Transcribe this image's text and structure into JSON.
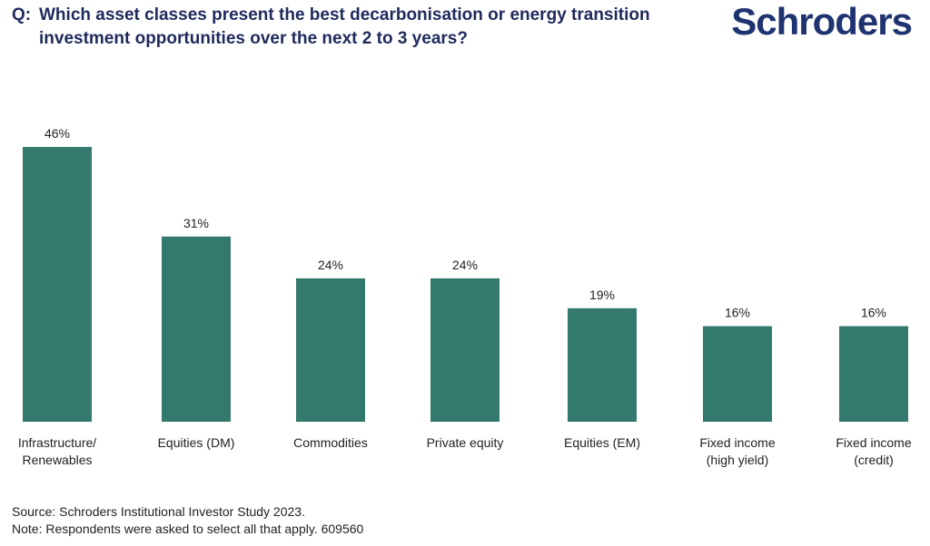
{
  "header": {
    "question_prefix": "Q:",
    "question": "Which asset classes present the best decarbonisation or energy transition investment opportunities over the next 2 to 3 years?",
    "brand": "Schroders"
  },
  "colors": {
    "bar": "#33796d",
    "title": "#1f2a5c",
    "brand": "#1f3370",
    "text": "#222222"
  },
  "chart_data": {
    "type": "bar",
    "categories": [
      [
        "Infrastructure/",
        "Renewables"
      ],
      [
        "Equities (DM)"
      ],
      [
        "Commodities"
      ],
      [
        "Private equity"
      ],
      [
        "Equities (EM)"
      ],
      [
        "Fixed income",
        "(high yield)"
      ],
      [
        "Fixed income",
        "(credit)"
      ]
    ],
    "values": [
      46,
      31,
      24,
      24,
      19,
      16,
      16
    ],
    "value_labels": [
      "46%",
      "31%",
      "24%",
      "24%",
      "19%",
      "16%",
      "16%"
    ],
    "unit": "%",
    "ylim": [
      0,
      46
    ],
    "grid": false,
    "legend": "none"
  },
  "footer": {
    "source": "Source: Schroders Institutional Investor Study 2023.",
    "note": "Note: Respondents were asked to select all that apply. 609560"
  }
}
